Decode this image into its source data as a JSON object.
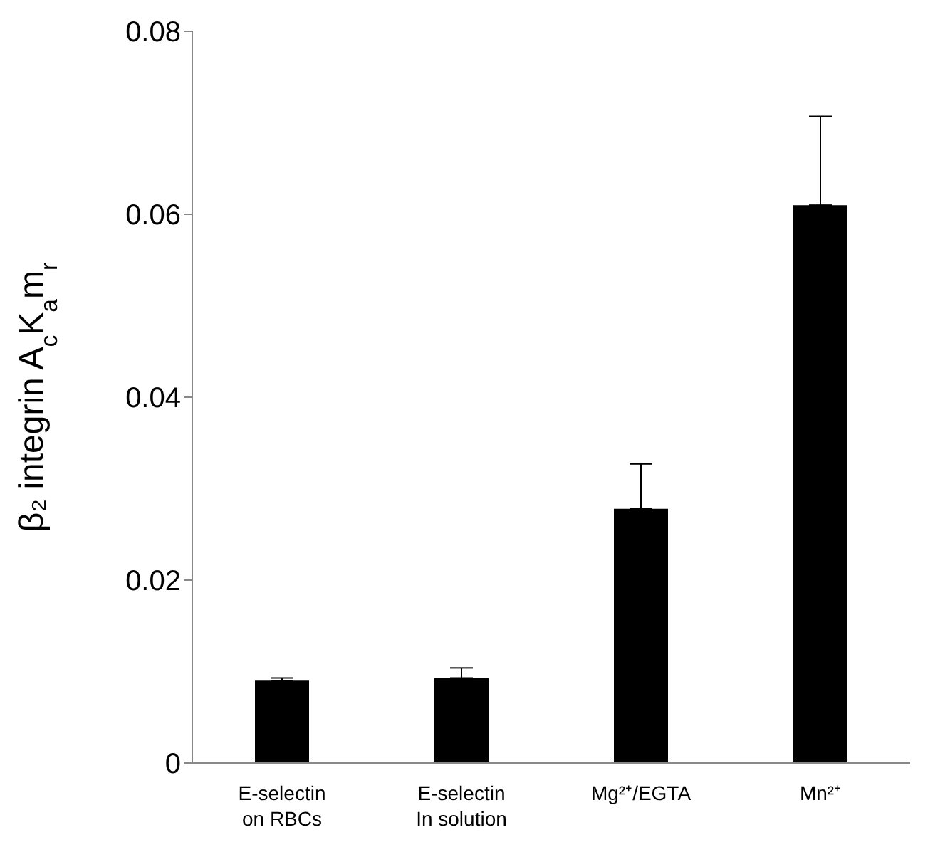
{
  "chart_data": {
    "type": "bar",
    "ylabel": "β₂ integrin A$_{c}$K$_{a}$m$_{r}$",
    "categories": [
      "E-selectin\non RBCs",
      "E-selectin\nIn solution",
      "Mg²⁺/EGTA",
      "Mn²⁺"
    ],
    "values": [
      0.009,
      0.0093,
      0.0278,
      0.061
    ],
    "errors": [
      [
        0.009,
        0.0093
      ],
      [
        0.0093,
        0.0104
      ],
      [
        0.0278,
        0.0327
      ],
      [
        0.061,
        0.0707
      ]
    ],
    "color": "#000000",
    "ylim": [
      0,
      0.08
    ],
    "yticks": [
      0,
      0.02,
      0.04,
      0.06,
      0.08
    ],
    "grid": false
  }
}
